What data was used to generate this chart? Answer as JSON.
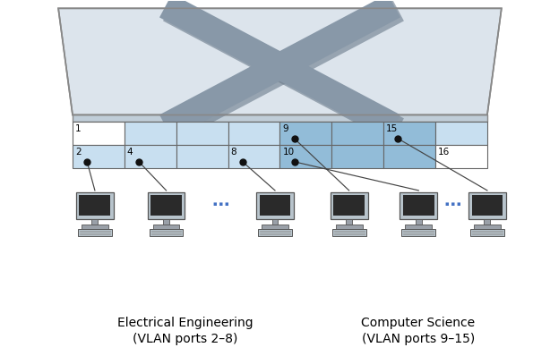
{
  "bg_color": "#ffffff",
  "port_colors": {
    "white": "#ffffff",
    "light_blue": "#c8dff0",
    "blue": "#92bcd8"
  },
  "row1_colors": [
    "white",
    "light_blue",
    "light_blue",
    "light_blue",
    "blue",
    "blue",
    "blue",
    "light_blue"
  ],
  "row2_colors": [
    "light_blue",
    "light_blue",
    "light_blue",
    "light_blue",
    "blue",
    "blue",
    "blue",
    "white"
  ],
  "row1_labels": [
    "1",
    "",
    "",
    "",
    "9",
    "",
    "15",
    ""
  ],
  "row2_labels": [
    "2",
    "4",
    "",
    "8",
    "10",
    "",
    "",
    "16"
  ],
  "ee_label1": "Electrical Engineering",
  "ee_label2": "(VLAN ports 2–8)",
  "cs_label1": "Computer Science",
  "cs_label2": "(VLAN ports 9–15)",
  "dot_color": "#111111",
  "line_color": "#444444",
  "ellipsis_color": "#4472c4",
  "switch_top_color": "#dce4ec",
  "switch_top_edge": "#888888",
  "x_arm_color": "#8898a8",
  "x_shadow_color": "#6a7a8a"
}
